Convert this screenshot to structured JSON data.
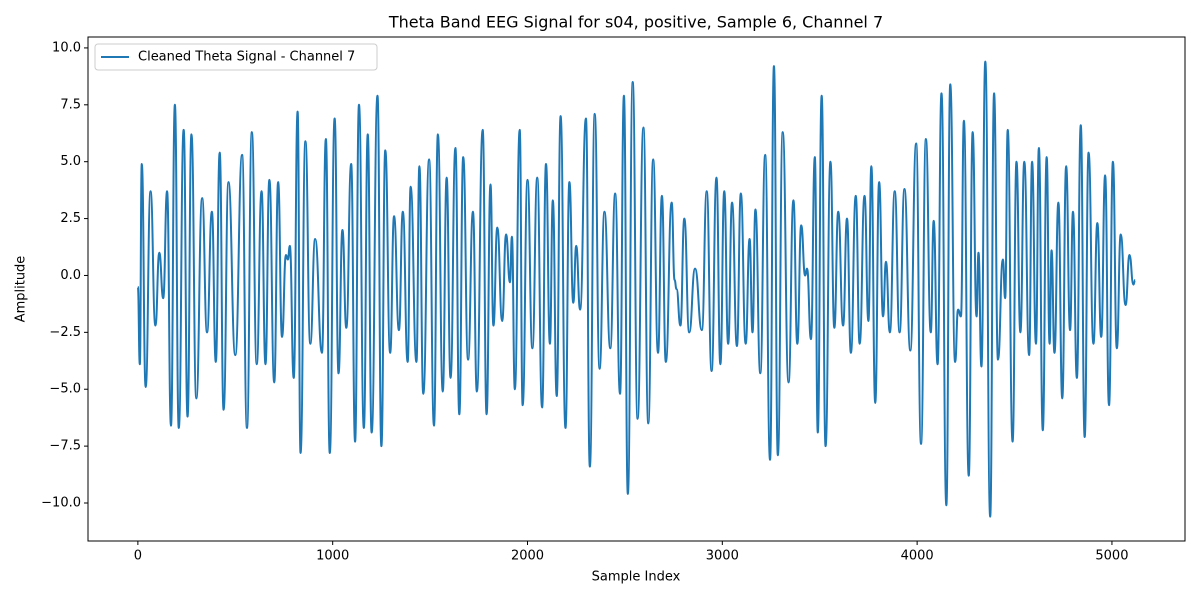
{
  "chart_data": {
    "type": "line",
    "title": "Theta Band EEG Signal for s04, positive, Sample 6, Channel 7",
    "x_label": "Sample Index",
    "y_label": "Amplitude",
    "legend": "upper left",
    "grid": false,
    "xlim": [
      -256,
      5375
    ],
    "ylim": [
      -11.67,
      10.48
    ],
    "xticks": [
      0,
      1000,
      2000,
      3000,
      4000,
      5000
    ],
    "yticks": [
      {
        "value": -10,
        "label": "−10.0"
      },
      {
        "value": -7.5,
        "label": "−7.5"
      },
      {
        "value": -5,
        "label": "−5.0"
      },
      {
        "value": -2.5,
        "label": "−2.5"
      },
      {
        "value": 0,
        "label": "0.0"
      },
      {
        "value": 2.5,
        "label": "2.5"
      },
      {
        "value": 5,
        "label": "5.0"
      },
      {
        "value": 7.5,
        "label": "7.5"
      },
      {
        "value": 10,
        "label": "10.0"
      }
    ],
    "x": [
      0,
      10,
      20,
      40,
      65,
      90,
      110,
      130,
      150,
      170,
      190,
      210,
      235,
      255,
      275,
      300,
      330,
      355,
      380,
      400,
      420,
      440,
      465,
      500,
      535,
      560,
      585,
      610,
      635,
      655,
      675,
      700,
      720,
      740,
      760,
      770,
      780,
      800,
      820,
      835,
      860,
      885,
      910,
      945,
      965,
      985,
      1010,
      1030,
      1050,
      1070,
      1095,
      1115,
      1135,
      1160,
      1180,
      1200,
      1230,
      1250,
      1270,
      1295,
      1315,
      1340,
      1360,
      1385,
      1400,
      1430,
      1445,
      1465,
      1495,
      1520,
      1540,
      1565,
      1585,
      1605,
      1630,
      1650,
      1670,
      1695,
      1720,
      1740,
      1770,
      1790,
      1810,
      1825,
      1845,
      1870,
      1890,
      1910,
      1920,
      1935,
      1960,
      1975,
      2000,
      2025,
      2050,
      2075,
      2095,
      2115,
      2130,
      2150,
      2170,
      2195,
      2215,
      2235,
      2250,
      2270,
      2300,
      2320,
      2345,
      2370,
      2395,
      2425,
      2450,
      2475,
      2495,
      2515,
      2540,
      2565,
      2595,
      2620,
      2645,
      2670,
      2690,
      2710,
      2740,
      2755,
      2765,
      2785,
      2805,
      2830,
      2860,
      2895,
      2920,
      2945,
      2970,
      2990,
      3010,
      3030,
      3050,
      3075,
      3095,
      3120,
      3140,
      3155,
      3170,
      3195,
      3220,
      3245,
      3265,
      3285,
      3310,
      3340,
      3365,
      3385,
      3405,
      3425,
      3435,
      3455,
      3475,
      3490,
      3510,
      3530,
      3555,
      3575,
      3595,
      3620,
      3640,
      3660,
      3685,
      3705,
      3730,
      3750,
      3765,
      3785,
      3805,
      3825,
      3840,
      3860,
      3885,
      3910,
      3935,
      3965,
      3995,
      4020,
      4045,
      4070,
      4085,
      4105,
      4125,
      4150,
      4170,
      4195,
      4210,
      4225,
      4240,
      4265,
      4285,
      4305,
      4315,
      4330,
      4350,
      4375,
      4395,
      4415,
      4440,
      4452,
      4465,
      4490,
      4510,
      4530,
      4550,
      4575,
      4590,
      4610,
      4625,
      4645,
      4665,
      4680,
      4690,
      4705,
      4725,
      4745,
      4765,
      4785,
      4800,
      4820,
      4840,
      4860,
      4880,
      4905,
      4925,
      4945,
      4965,
      4985,
      5005,
      5025,
      5045,
      5070,
      5090,
      5110,
      5119
    ],
    "series": [
      {
        "name": "Cleaned Theta Signal - Channel 7",
        "color": "#1f77b4",
        "values": [
          -0.5,
          -3.9,
          4.9,
          -4.9,
          3.7,
          -2.2,
          1.0,
          -1.0,
          3.7,
          -6.6,
          7.5,
          -6.7,
          6.4,
          -6.2,
          6.2,
          -5.4,
          3.4,
          -2.5,
          2.8,
          -3.8,
          5.4,
          -5.9,
          4.1,
          -3.5,
          5.3,
          -6.7,
          6.3,
          -3.9,
          3.7,
          -3.9,
          4.2,
          -4.7,
          4.1,
          -2.7,
          0.9,
          0.7,
          1.3,
          -4.5,
          7.2,
          -7.8,
          5.9,
          -3.0,
          1.6,
          -3.4,
          6.0,
          -7.8,
          6.9,
          -4.3,
          2.0,
          -2.3,
          4.9,
          -7.3,
          7.5,
          -6.7,
          6.2,
          -6.9,
          7.9,
          -7.5,
          5.5,
          -3.4,
          2.6,
          -2.4,
          2.8,
          -3.8,
          3.9,
          -3.8,
          4.8,
          -5.2,
          5.1,
          -6.6,
          6.2,
          -5.1,
          4.3,
          -4.5,
          5.6,
          -6.1,
          5.2,
          -3.7,
          2.8,
          -5.1,
          6.4,
          -6.1,
          4.0,
          -2.2,
          2.1,
          -2.0,
          1.8,
          -0.3,
          1.7,
          -5.0,
          6.4,
          -5.7,
          4.2,
          -3.2,
          4.3,
          -5.8,
          4.9,
          -3.0,
          3.3,
          -5.3,
          7.0,
          -6.7,
          4.1,
          -1.2,
          1.3,
          -1.5,
          6.9,
          -8.4,
          7.1,
          -4.1,
          2.8,
          -3.2,
          3.6,
          -5.2,
          7.9,
          -9.6,
          8.5,
          -6.3,
          6.5,
          -6.5,
          5.1,
          -3.4,
          3.5,
          -3.8,
          3.2,
          -0.2,
          -0.6,
          -2.2,
          2.5,
          -2.5,
          0.3,
          -2.4,
          3.7,
          -4.2,
          4.3,
          -3.9,
          3.7,
          -3.0,
          3.2,
          -3.1,
          3.6,
          -3.0,
          1.6,
          -2.5,
          2.9,
          -4.3,
          5.3,
          -8.1,
          9.2,
          -7.9,
          6.3,
          -4.7,
          3.3,
          -3.0,
          2.2,
          0.0,
          0.3,
          -2.8,
          5.2,
          -6.9,
          7.9,
          -7.5,
          5.0,
          -2.3,
          2.8,
          -2.2,
          2.5,
          -3.4,
          3.5,
          -3.0,
          3.5,
          -2.0,
          4.8,
          -5.6,
          4.1,
          -1.8,
          0.6,
          -2.5,
          3.7,
          -2.5,
          3.8,
          -3.3,
          5.8,
          -7.4,
          6.0,
          -2.5,
          2.4,
          -3.9,
          8.0,
          -10.1,
          8.4,
          -3.8,
          -1.5,
          -1.8,
          6.8,
          -8.8,
          6.3,
          -1.8,
          1.0,
          -4.0,
          9.4,
          -10.6,
          8.0,
          -3.7,
          0.7,
          -1.0,
          6.4,
          -7.3,
          5.0,
          -2.5,
          5.0,
          -3.5,
          5.0,
          -3.0,
          5.6,
          -6.8,
          5.2,
          -3.0,
          1.1,
          -3.4,
          3.2,
          -5.4,
          4.8,
          -2.4,
          2.8,
          -4.5,
          6.6,
          -7.1,
          5.4,
          -3.0,
          2.3,
          -2.7,
          4.4,
          -5.7,
          5.0,
          -3.2,
          1.8,
          -1.3,
          0.9,
          -0.4,
          -0.2
        ]
      }
    ]
  }
}
